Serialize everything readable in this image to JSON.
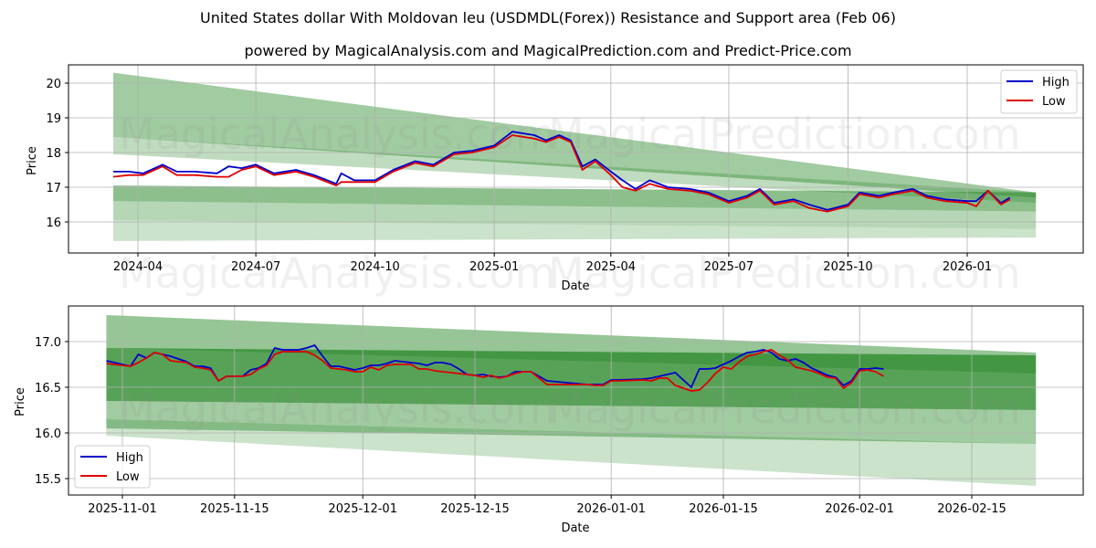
{
  "header": {
    "title": "United States dollar With Moldovan leu (USDMDL(Forex)) Resistance and Support area (Feb 06)",
    "subtitle": "powered by MagicalAnalysis.com and MagicalPrediction.com and Predict-Price.com"
  },
  "watermarks": [
    "MagicalAnalysis.com",
    "MagicalPrediction.com"
  ],
  "colors": {
    "high": "#0000cc",
    "low": "#dd0000",
    "band": "#2e8b2e"
  },
  "chart_data": [
    {
      "type": "line",
      "title": "United States dollar With Moldovan leu (USDMDL(Forex)) Resistance and Support area (Feb 06)",
      "xlabel": "Date",
      "ylabel": "Price",
      "ylim": [
        15.15,
        20.5
      ],
      "yticks": [
        16,
        17,
        18,
        19,
        20
      ],
      "xticks": [
        "2024-04",
        "2024-07",
        "2024-10",
        "2025-01",
        "2025-04",
        "2025-07",
        "2025-10",
        "2026-01"
      ],
      "grid": true,
      "legend_position": "upper right",
      "legend": [
        "High",
        "Low"
      ],
      "x_range": [
        "2024-03-13",
        "2026-02-23"
      ],
      "series": [
        {
          "name": "High",
          "x": [
            "2024-03-13",
            "2024-03-25",
            "2024-04-05",
            "2024-04-20",
            "2024-05-01",
            "2024-05-15",
            "2024-06-01",
            "2024-06-10",
            "2024-06-20",
            "2024-07-01",
            "2024-07-15",
            "2024-08-01",
            "2024-08-15",
            "2024-09-01",
            "2024-09-05",
            "2024-09-15",
            "2024-10-01",
            "2024-10-15",
            "2024-11-01",
            "2024-11-15",
            "2024-12-01",
            "2024-12-15",
            "2025-01-01",
            "2025-01-15",
            "2025-02-01",
            "2025-02-10",
            "2025-02-20",
            "2025-03-01",
            "2025-03-10",
            "2025-03-20",
            "2025-04-01",
            "2025-04-10",
            "2025-04-20",
            "2025-05-01",
            "2025-05-15",
            "2025-06-01",
            "2025-06-15",
            "2025-07-01",
            "2025-07-15",
            "2025-07-25",
            "2025-08-05",
            "2025-08-20",
            "2025-09-01",
            "2025-09-15",
            "2025-10-01",
            "2025-10-10",
            "2025-10-25",
            "2025-11-05",
            "2025-11-20",
            "2025-12-01",
            "2025-12-15",
            "2026-01-01",
            "2026-01-08",
            "2026-01-17",
            "2026-01-27",
            "2026-02-03"
          ],
          "values": [
            17.45,
            17.45,
            17.4,
            17.65,
            17.45,
            17.45,
            17.4,
            17.6,
            17.55,
            17.65,
            17.4,
            17.5,
            17.35,
            17.1,
            17.4,
            17.2,
            17.2,
            17.5,
            17.75,
            17.65,
            18.0,
            18.05,
            18.2,
            18.6,
            18.5,
            18.35,
            18.5,
            18.35,
            17.6,
            17.8,
            17.45,
            17.2,
            16.95,
            17.2,
            17.0,
            16.95,
            16.85,
            16.6,
            16.75,
            16.95,
            16.55,
            16.65,
            16.5,
            16.35,
            16.5,
            16.85,
            16.75,
            16.85,
            16.95,
            16.75,
            16.65,
            16.6,
            16.6,
            16.9,
            16.55,
            16.7
          ]
        },
        {
          "name": "Low",
          "x": [
            "2024-03-13",
            "2024-03-25",
            "2024-04-05",
            "2024-04-20",
            "2024-05-01",
            "2024-05-15",
            "2024-06-01",
            "2024-06-10",
            "2024-06-20",
            "2024-07-01",
            "2024-07-15",
            "2024-08-01",
            "2024-08-15",
            "2024-09-01",
            "2024-09-05",
            "2024-09-15",
            "2024-10-01",
            "2024-10-15",
            "2024-11-01",
            "2024-11-15",
            "2024-12-01",
            "2024-12-15",
            "2025-01-01",
            "2025-01-15",
            "2025-02-01",
            "2025-02-10",
            "2025-02-20",
            "2025-03-01",
            "2025-03-10",
            "2025-03-20",
            "2025-04-01",
            "2025-04-10",
            "2025-04-20",
            "2025-05-01",
            "2025-05-15",
            "2025-06-01",
            "2025-06-15",
            "2025-07-01",
            "2025-07-15",
            "2025-07-25",
            "2025-08-05",
            "2025-08-20",
            "2025-09-01",
            "2025-09-15",
            "2025-10-01",
            "2025-10-10",
            "2025-10-25",
            "2025-11-05",
            "2025-11-20",
            "2025-12-01",
            "2025-12-15",
            "2026-01-01",
            "2026-01-08",
            "2026-01-17",
            "2026-01-27",
            "2026-02-03"
          ],
          "values": [
            17.3,
            17.35,
            17.35,
            17.6,
            17.35,
            17.35,
            17.3,
            17.3,
            17.5,
            17.6,
            17.35,
            17.45,
            17.3,
            17.05,
            17.15,
            17.15,
            17.15,
            17.45,
            17.7,
            17.6,
            17.95,
            18.0,
            18.15,
            18.5,
            18.4,
            18.3,
            18.45,
            18.3,
            17.5,
            17.75,
            17.35,
            17.0,
            16.9,
            17.1,
            16.95,
            16.9,
            16.8,
            16.55,
            16.7,
            16.9,
            16.5,
            16.6,
            16.4,
            16.3,
            16.45,
            16.8,
            16.7,
            16.8,
            16.9,
            16.7,
            16.6,
            16.55,
            16.45,
            16.9,
            16.5,
            16.65
          ]
        }
      ],
      "bands": [
        {
          "name": "outer-resistance",
          "start": [
            20.3,
            18.45
          ],
          "end": [
            16.85,
            16.7
          ],
          "opacity": 0.45
        },
        {
          "name": "mid-resistance",
          "start": [
            18.45,
            17.95
          ],
          "end": [
            16.85,
            16.55
          ],
          "opacity": 0.3
        },
        {
          "name": "core",
          "start": [
            17.05,
            16.6
          ],
          "end": [
            16.85,
            16.3
          ],
          "opacity": 0.55
        },
        {
          "name": "mid-support",
          "start": [
            16.6,
            16.05
          ],
          "end": [
            16.3,
            15.8
          ],
          "opacity": 0.35
        },
        {
          "name": "outer-support",
          "start": [
            16.05,
            15.45
          ],
          "end": [
            15.8,
            15.55
          ],
          "opacity": 0.25
        }
      ]
    },
    {
      "type": "line",
      "title": "",
      "xlabel": "Date",
      "ylabel": "Price",
      "ylim": [
        15.31,
        17.39
      ],
      "yticks": [
        15.5,
        16.0,
        16.5,
        17.0
      ],
      "xticks": [
        "2025-11-01",
        "2025-11-15",
        "2025-12-01",
        "2025-12-15",
        "2026-01-01",
        "2026-01-15",
        "2026-02-01",
        "2026-02-15"
      ],
      "grid": true,
      "legend_position": "lower left",
      "legend": [
        "High",
        "Low"
      ],
      "x_range": [
        "2025-10-30",
        "2026-02-23"
      ],
      "series": [
        {
          "name": "High",
          "x": [
            "2025-10-30",
            "2025-11-01",
            "2025-11-02",
            "2025-11-03",
            "2025-11-04",
            "2025-11-05",
            "2025-11-06",
            "2025-11-07",
            "2025-11-08",
            "2025-11-09",
            "2025-11-10",
            "2025-11-11",
            "2025-11-12",
            "2025-11-13",
            "2025-11-14",
            "2025-11-15",
            "2025-11-16",
            "2025-11-17",
            "2025-11-18",
            "2025-11-19",
            "2025-11-20",
            "2025-11-21",
            "2025-11-23",
            "2025-11-24",
            "2025-11-25",
            "2025-11-26",
            "2025-11-27",
            "2025-11-28",
            "2025-11-29",
            "2025-11-30",
            "2025-12-01",
            "2025-12-02",
            "2025-12-03",
            "2025-12-04",
            "2025-12-05",
            "2025-12-06",
            "2025-12-07",
            "2025-12-08",
            "2025-12-09",
            "2025-12-10",
            "2025-12-11",
            "2025-12-12",
            "2025-12-13",
            "2025-12-14",
            "2025-12-15",
            "2025-12-16",
            "2025-12-17",
            "2025-12-18",
            "2025-12-19",
            "2025-12-20",
            "2025-12-21",
            "2025-12-22",
            "2025-12-23",
            "2025-12-24",
            "2025-12-29",
            "2025-12-30",
            "2025-12-31",
            "2026-01-01",
            "2026-01-02",
            "2026-01-05",
            "2026-01-06",
            "2026-01-07",
            "2026-01-08",
            "2026-01-09",
            "2026-01-11",
            "2026-01-12",
            "2026-01-13",
            "2026-01-14",
            "2026-01-15",
            "2026-01-16",
            "2026-01-17",
            "2026-01-18",
            "2026-01-19",
            "2026-01-20",
            "2026-01-21",
            "2026-01-22",
            "2026-01-23",
            "2026-01-24",
            "2026-01-25",
            "2026-01-26",
            "2026-01-27",
            "2026-01-28",
            "2026-01-29",
            "2026-01-30",
            "2026-01-31",
            "2026-02-01",
            "2026-02-02",
            "2026-02-03",
            "2026-02-04"
          ],
          "values": [
            16.79,
            16.75,
            16.73,
            16.86,
            16.82,
            16.88,
            16.86,
            16.84,
            16.81,
            16.78,
            16.73,
            16.73,
            16.71,
            16.57,
            16.62,
            16.62,
            16.62,
            16.69,
            16.71,
            16.76,
            16.93,
            16.91,
            16.91,
            16.93,
            16.96,
            16.84,
            16.73,
            16.73,
            16.71,
            16.69,
            16.71,
            16.74,
            16.74,
            16.76,
            16.79,
            16.78,
            16.77,
            16.76,
            16.74,
            16.77,
            16.77,
            16.75,
            16.7,
            16.64,
            16.63,
            16.64,
            16.62,
            16.61,
            16.62,
            16.67,
            16.67,
            16.67,
            16.62,
            16.57,
            16.53,
            16.53,
            16.53,
            16.58,
            16.58,
            16.59,
            16.6,
            16.62,
            16.64,
            16.66,
            16.5,
            16.7,
            16.7,
            16.71,
            16.75,
            16.79,
            16.84,
            16.88,
            16.89,
            16.91,
            16.88,
            16.81,
            16.79,
            16.81,
            16.77,
            16.71,
            16.67,
            16.63,
            16.61,
            16.52,
            16.57,
            16.7,
            16.7,
            16.71,
            16.7
          ]
        },
        {
          "name": "Low",
          "x": [
            "2025-10-30",
            "2025-11-01",
            "2025-11-02",
            "2025-11-03",
            "2025-11-04",
            "2025-11-05",
            "2025-11-06",
            "2025-11-07",
            "2025-11-08",
            "2025-11-09",
            "2025-11-10",
            "2025-11-11",
            "2025-11-12",
            "2025-11-13",
            "2025-11-14",
            "2025-11-15",
            "2025-11-16",
            "2025-11-17",
            "2025-11-18",
            "2025-11-19",
            "2025-11-20",
            "2025-11-21",
            "2025-11-23",
            "2025-11-24",
            "2025-11-25",
            "2025-11-26",
            "2025-11-27",
            "2025-11-28",
            "2025-11-29",
            "2025-11-30",
            "2025-12-01",
            "2025-12-02",
            "2025-12-03",
            "2025-12-04",
            "2025-12-05",
            "2025-12-06",
            "2025-12-07",
            "2025-12-08",
            "2025-12-09",
            "2025-12-10",
            "2025-12-11",
            "2025-12-12",
            "2025-12-13",
            "2025-12-14",
            "2025-12-15",
            "2025-12-16",
            "2025-12-17",
            "2025-12-18",
            "2025-12-19",
            "2025-12-20",
            "2025-12-21",
            "2025-12-22",
            "2025-12-23",
            "2025-12-24",
            "2025-12-29",
            "2025-12-30",
            "2025-12-31",
            "2026-01-01",
            "2026-01-02",
            "2026-01-05",
            "2026-01-06",
            "2026-01-07",
            "2026-01-08",
            "2026-01-09",
            "2026-01-11",
            "2026-01-12",
            "2026-01-13",
            "2026-01-14",
            "2026-01-15",
            "2026-01-16",
            "2026-01-17",
            "2026-01-18",
            "2026-01-19",
            "2026-01-20",
            "2026-01-21",
            "2026-01-22",
            "2026-01-23",
            "2026-01-24",
            "2026-01-25",
            "2026-01-26",
            "2026-01-27",
            "2026-01-28",
            "2026-01-29",
            "2026-01-30",
            "2026-01-31",
            "2026-02-01",
            "2026-02-02",
            "2026-02-03",
            "2026-02-04"
          ],
          "values": [
            16.76,
            16.74,
            16.73,
            16.77,
            16.82,
            16.88,
            16.86,
            16.79,
            16.78,
            16.77,
            16.72,
            16.71,
            16.69,
            16.57,
            16.62,
            16.62,
            16.62,
            16.64,
            16.7,
            16.74,
            16.86,
            16.89,
            16.89,
            16.89,
            16.85,
            16.79,
            16.71,
            16.7,
            16.69,
            16.67,
            16.67,
            16.72,
            16.69,
            16.74,
            16.75,
            16.75,
            16.75,
            16.7,
            16.7,
            16.68,
            16.67,
            16.66,
            16.65,
            16.64,
            16.63,
            16.61,
            16.63,
            16.6,
            16.62,
            16.65,
            16.67,
            16.67,
            16.6,
            16.53,
            16.53,
            16.52,
            16.52,
            16.57,
            16.57,
            16.58,
            16.57,
            16.6,
            16.6,
            16.52,
            16.46,
            16.47,
            16.55,
            16.65,
            16.72,
            16.7,
            16.78,
            16.84,
            16.86,
            16.89,
            16.91,
            16.85,
            16.8,
            16.72,
            16.7,
            16.68,
            16.65,
            16.61,
            16.6,
            16.49,
            16.55,
            16.68,
            16.69,
            16.67,
            16.62
          ]
        }
      ],
      "bands": [
        {
          "name": "outer-resistance",
          "start": [
            17.29,
            16.93
          ],
          "end": [
            16.88,
            16.65
          ],
          "opacity": 0.5
        },
        {
          "name": "core-resistance",
          "start": [
            16.93,
            16.35
          ],
          "end": [
            16.85,
            16.25
          ],
          "opacity": 0.8
        },
        {
          "name": "mid-support",
          "start": [
            16.35,
            16.05
          ],
          "end": [
            16.25,
            15.88
          ],
          "opacity": 0.45
        },
        {
          "name": "outer-support",
          "start": [
            16.15,
            15.97
          ],
          "end": [
            15.88,
            15.42
          ],
          "opacity": 0.25
        }
      ]
    }
  ]
}
